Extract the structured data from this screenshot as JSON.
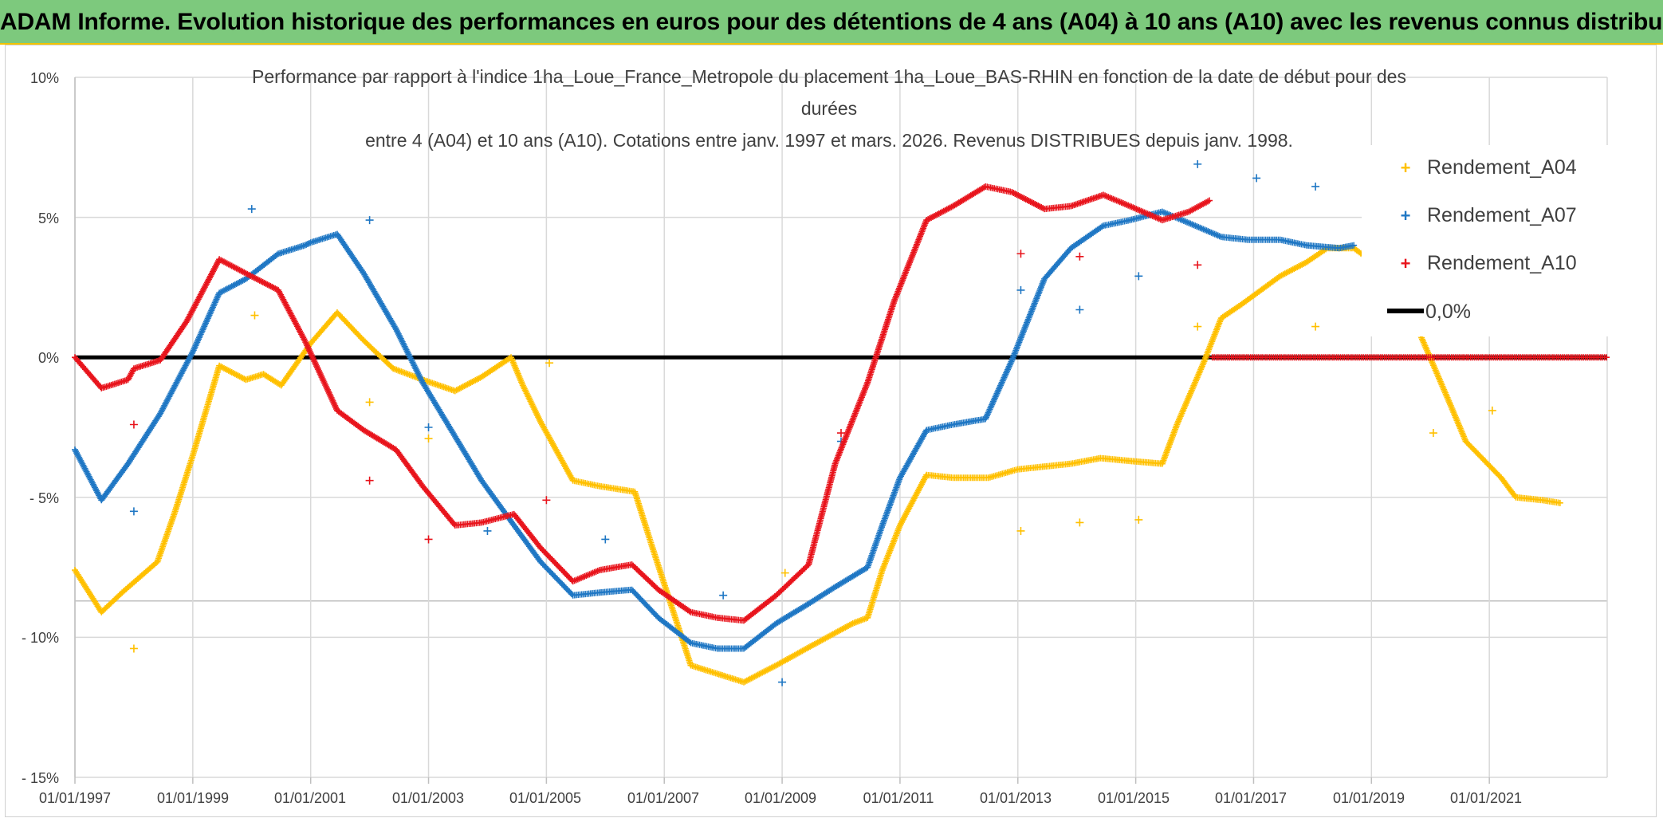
{
  "banner": {
    "title": "ADAM Informe. Evolution historique des performances en euros pour des détentions de 4 ans (A04) à 10 ans (A10) avec les revenus connus distribués"
  },
  "colors": {
    "banner_bg": "#7dc97d",
    "banner_border": "#f2c200",
    "A04": "#ffc000",
    "A07": "#1f77c4",
    "A10": "#e8141c",
    "zero": "#000000",
    "grid": "#d9d9d9"
  },
  "chart_data": {
    "type": "scatter",
    "title_lines": [
      "Performance par rapport à l'indice 1ha_Loue_France_Metropole  du placement 1ha_Loue_BAS-RHIN en fonction de la date de début pour des",
      "durées",
      "entre 4 (A04) et 10 ans (A10). Cotations entre janv. 1997 et mars. 2026. Revenus DISTRIBUES depuis janv. 1998."
    ],
    "xlim": [
      1997.0,
      2023.0
    ],
    "ylim": [
      -15,
      10
    ],
    "x_ticks": [
      {
        "year": 1997,
        "label": "01/01/1997"
      },
      {
        "year": 1999,
        "label": "01/01/1999"
      },
      {
        "year": 2001,
        "label": "01/01/2001"
      },
      {
        "year": 2003,
        "label": "01/01/2003"
      },
      {
        "year": 2005,
        "label": "01/01/2005"
      },
      {
        "year": 2007,
        "label": "01/01/2007"
      },
      {
        "year": 2009,
        "label": "01/01/2009"
      },
      {
        "year": 2011,
        "label": "01/01/2011"
      },
      {
        "year": 2013,
        "label": "01/01/2013"
      },
      {
        "year": 2015,
        "label": "01/01/2015"
      },
      {
        "year": 2017,
        "label": "01/01/2017"
      },
      {
        "year": 2019,
        "label": "01/01/2019"
      },
      {
        "year": 2021,
        "label": "01/01/2021"
      }
    ],
    "y_ticks": [
      {
        "value": 10,
        "label": "10%"
      },
      {
        "value": 5,
        "label": "5%"
      },
      {
        "value": 0,
        "label": "0%"
      },
      {
        "value": -5,
        "label": "- 5%"
      },
      {
        "value": -10,
        "label": "- 10%"
      },
      {
        "value": -15,
        "label": "- 15%"
      }
    ],
    "legend": [
      "Rendement_A04",
      "Rendement_A07",
      "Rendement_A10",
      "0,0%"
    ],
    "legend_position": "right",
    "series": [
      {
        "name": "Rendement_A04",
        "color": "#ffc000",
        "curve": [
          [
            1997.0,
            -7.6
          ],
          [
            1997.45,
            -9.1
          ],
          [
            1997.8,
            -8.4
          ],
          [
            1998.4,
            -7.3
          ],
          [
            1998.7,
            -5.5
          ],
          [
            1999.0,
            -3.5
          ],
          [
            1999.45,
            -0.3
          ],
          [
            1999.9,
            -0.8
          ],
          [
            2000.2,
            -0.6
          ],
          [
            2000.5,
            -1.0
          ],
          [
            2001.0,
            0.5
          ],
          [
            2001.45,
            1.6
          ],
          [
            2001.9,
            0.6
          ],
          [
            2002.4,
            -0.4
          ],
          [
            2002.9,
            -0.8
          ],
          [
            2003.45,
            -1.2
          ],
          [
            2003.9,
            -0.7
          ],
          [
            2004.4,
            0.0
          ],
          [
            2004.6,
            -1.0
          ],
          [
            2004.9,
            -2.3
          ],
          [
            2005.45,
            -4.4
          ],
          [
            2005.9,
            -4.6
          ],
          [
            2006.5,
            -4.8
          ],
          [
            2006.8,
            -6.8
          ],
          [
            2007.45,
            -11.0
          ],
          [
            2007.9,
            -11.3
          ],
          [
            2008.35,
            -11.6
          ],
          [
            2008.9,
            -11.0
          ],
          [
            2009.5,
            -10.3
          ],
          [
            2010.2,
            -9.5
          ],
          [
            2010.45,
            -9.3
          ],
          [
            2010.7,
            -7.6
          ],
          [
            2011.0,
            -6.0
          ],
          [
            2011.45,
            -4.2
          ],
          [
            2011.9,
            -4.3
          ],
          [
            2012.5,
            -4.3
          ],
          [
            2013.0,
            -4.0
          ],
          [
            2013.9,
            -3.8
          ],
          [
            2014.4,
            -3.6
          ],
          [
            2014.9,
            -3.7
          ],
          [
            2015.45,
            -3.8
          ],
          [
            2015.7,
            -2.4
          ],
          [
            2016.15,
            -0.2
          ],
          [
            2016.45,
            1.4
          ],
          [
            2016.8,
            1.9
          ],
          [
            2017.45,
            2.9
          ],
          [
            2017.9,
            3.4
          ],
          [
            2018.25,
            3.9
          ],
          [
            2018.7,
            3.9
          ],
          [
            2019.15,
            3.2
          ],
          [
            2019.55,
            2.7
          ],
          [
            2019.85,
            0.7
          ],
          [
            2020.3,
            -1.5
          ],
          [
            2020.6,
            -3.0
          ],
          [
            2021.2,
            -4.3
          ],
          [
            2021.45,
            -5.0
          ],
          [
            2021.9,
            -5.1
          ],
          [
            2022.2,
            -5.2
          ]
        ],
        "outliers": [
          [
            1998.0,
            -10.4
          ],
          [
            2000.05,
            1.5
          ],
          [
            2002.0,
            -1.6
          ],
          [
            2003.0,
            -2.9
          ],
          [
            2005.05,
            -0.2
          ],
          [
            2009.05,
            -7.7
          ],
          [
            2013.05,
            -6.2
          ],
          [
            2014.05,
            -5.9
          ],
          [
            2015.05,
            -5.8
          ],
          [
            2016.05,
            1.1
          ],
          [
            2018.05,
            1.1
          ],
          [
            2020.05,
            -2.7
          ],
          [
            2021.05,
            -1.9
          ]
        ]
      },
      {
        "name": "Rendement_A07",
        "color": "#1f77c4",
        "curve": [
          [
            1997.0,
            -3.3
          ],
          [
            1997.45,
            -5.1
          ],
          [
            1997.9,
            -3.8
          ],
          [
            1998.45,
            -2.0
          ],
          [
            1999.0,
            0.2
          ],
          [
            1999.45,
            2.3
          ],
          [
            1999.9,
            2.8
          ],
          [
            2000.45,
            3.7
          ],
          [
            2000.9,
            4.0
          ],
          [
            2001.0,
            4.1
          ],
          [
            2001.45,
            4.4
          ],
          [
            2001.9,
            3.0
          ],
          [
            2002.45,
            1.0
          ],
          [
            2002.9,
            -0.9
          ],
          [
            2003.5,
            -3.0
          ],
          [
            2003.9,
            -4.4
          ],
          [
            2004.45,
            -6.0
          ],
          [
            2004.9,
            -7.3
          ],
          [
            2005.45,
            -8.5
          ],
          [
            2005.9,
            -8.4
          ],
          [
            2006.45,
            -8.3
          ],
          [
            2006.9,
            -9.3
          ],
          [
            2007.45,
            -10.2
          ],
          [
            2007.9,
            -10.4
          ],
          [
            2008.35,
            -10.4
          ],
          [
            2008.9,
            -9.5
          ],
          [
            2009.45,
            -8.8
          ],
          [
            2009.9,
            -8.2
          ],
          [
            2010.45,
            -7.5
          ],
          [
            2010.7,
            -6.0
          ],
          [
            2011.0,
            -4.3
          ],
          [
            2011.45,
            -2.6
          ],
          [
            2011.9,
            -2.4
          ],
          [
            2012.45,
            -2.2
          ],
          [
            2012.9,
            -0.1
          ],
          [
            2013.45,
            2.8
          ],
          [
            2013.9,
            3.9
          ],
          [
            2014.45,
            4.7
          ],
          [
            2014.9,
            4.9
          ],
          [
            2015.45,
            5.2
          ],
          [
            2015.9,
            4.8
          ],
          [
            2016.45,
            4.3
          ],
          [
            2016.9,
            4.2
          ],
          [
            2017.45,
            4.2
          ],
          [
            2017.9,
            4.0
          ],
          [
            2018.45,
            3.9
          ],
          [
            2018.7,
            4.0
          ]
        ],
        "outliers": [
          [
            1998.0,
            -5.5
          ],
          [
            2000.0,
            5.3
          ],
          [
            2002.0,
            4.9
          ],
          [
            2003.0,
            -2.5
          ],
          [
            2004.0,
            -6.2
          ],
          [
            2006.0,
            -6.5
          ],
          [
            2008.0,
            -8.5
          ],
          [
            2009.0,
            -11.6
          ],
          [
            2010.0,
            -3.0
          ],
          [
            2013.05,
            2.4
          ],
          [
            2014.05,
            1.7
          ],
          [
            2015.05,
            2.9
          ],
          [
            2016.05,
            6.9
          ],
          [
            2017.05,
            6.4
          ],
          [
            2018.05,
            6.1
          ]
        ]
      },
      {
        "name": "Rendement_A10",
        "color": "#e8141c",
        "curve": [
          [
            1997.0,
            0.0
          ],
          [
            1997.45,
            -1.1
          ],
          [
            1997.9,
            -0.8
          ],
          [
            1998.0,
            -0.4
          ],
          [
            1998.45,
            -0.1
          ],
          [
            1998.9,
            1.3
          ],
          [
            1999.45,
            3.5
          ],
          [
            1999.9,
            3.0
          ],
          [
            2000.45,
            2.4
          ],
          [
            2000.9,
            0.6
          ],
          [
            2001.45,
            -1.9
          ],
          [
            2001.9,
            -2.6
          ],
          [
            2002.45,
            -3.3
          ],
          [
            2002.9,
            -4.6
          ],
          [
            2003.45,
            -6.0
          ],
          [
            2003.9,
            -5.9
          ],
          [
            2004.45,
            -5.6
          ],
          [
            2004.9,
            -6.8
          ],
          [
            2005.45,
            -8.0
          ],
          [
            2005.9,
            -7.6
          ],
          [
            2006.45,
            -7.4
          ],
          [
            2006.9,
            -8.3
          ],
          [
            2007.45,
            -9.1
          ],
          [
            2007.9,
            -9.3
          ],
          [
            2008.35,
            -9.4
          ],
          [
            2008.9,
            -8.5
          ],
          [
            2009.45,
            -7.4
          ],
          [
            2009.9,
            -3.8
          ],
          [
            2010.45,
            -0.9
          ],
          [
            2010.9,
            2.0
          ],
          [
            2011.45,
            4.9
          ],
          [
            2011.9,
            5.4
          ],
          [
            2012.45,
            6.1
          ],
          [
            2012.9,
            5.9
          ],
          [
            2013.45,
            5.3
          ],
          [
            2013.9,
            5.4
          ],
          [
            2014.45,
            5.8
          ],
          [
            2014.9,
            5.4
          ],
          [
            2015.45,
            4.9
          ],
          [
            2015.9,
            5.2
          ],
          [
            2016.25,
            5.6
          ]
        ],
        "zero_segment": [
          2016.3,
          2023.0
        ],
        "outliers": [
          [
            1998.0,
            -2.4
          ],
          [
            2002.0,
            -4.4
          ],
          [
            2003.0,
            -6.5
          ],
          [
            2005.0,
            -5.1
          ],
          [
            2010.0,
            -2.7
          ],
          [
            2013.05,
            3.7
          ],
          [
            2014.05,
            3.6
          ],
          [
            2016.05,
            3.3
          ]
        ]
      }
    ]
  }
}
